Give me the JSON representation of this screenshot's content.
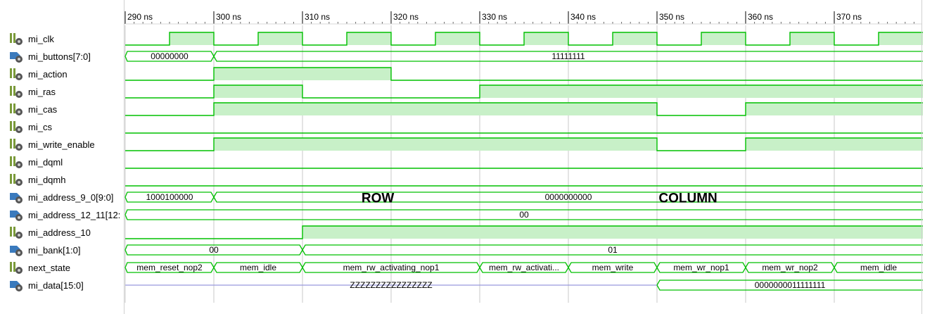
{
  "timeline": {
    "ticks": [
      {
        "t": 290,
        "label": "290 ns"
      },
      {
        "t": 300,
        "label": "300 ns"
      },
      {
        "t": 310,
        "label": "310 ns"
      },
      {
        "t": 320,
        "label": "320 ns"
      },
      {
        "t": 330,
        "label": "330 ns"
      },
      {
        "t": 340,
        "label": "340 ns"
      },
      {
        "t": 350,
        "label": "350 ns"
      },
      {
        "t": 360,
        "label": "360 ns"
      },
      {
        "t": 370,
        "label": "370 ns"
      }
    ],
    "t_start": 290,
    "t_end": 380,
    "cursor_times": [
      290,
      300,
      310,
      320,
      330,
      340,
      350,
      360,
      370
    ]
  },
  "colors": {
    "wave": "#00c000",
    "fill": "#c8f0c8",
    "highz": "#9999dd",
    "grid": "#c8c8c8"
  },
  "signals": [
    {
      "name": "mi_clk",
      "icon": "logic-signal-icon",
      "kind": "clock",
      "period": 10,
      "high_first_offset": 5
    },
    {
      "name": "mi_buttons[7:0]",
      "icon": "bus-signal-icon",
      "kind": "bus",
      "segments": [
        {
          "t0": 290,
          "t1": 300,
          "value": "00000000"
        },
        {
          "t0": 300,
          "t1": 380,
          "value": "11111111"
        }
      ]
    },
    {
      "name": "mi_action",
      "icon": "logic-signal-icon",
      "kind": "logic",
      "levels": [
        {
          "t0": 290,
          "t1": 300,
          "v": 0
        },
        {
          "t0": 300,
          "t1": 320,
          "v": 1
        },
        {
          "t0": 320,
          "t1": 380,
          "v": 0
        }
      ]
    },
    {
      "name": "mi_ras",
      "icon": "logic-signal-icon",
      "kind": "logic",
      "levels": [
        {
          "t0": 290,
          "t1": 300,
          "v": 0
        },
        {
          "t0": 300,
          "t1": 310,
          "v": 1
        },
        {
          "t0": 310,
          "t1": 330,
          "v": 0
        },
        {
          "t0": 330,
          "t1": 380,
          "v": 1
        }
      ]
    },
    {
      "name": "mi_cas",
      "icon": "logic-signal-icon",
      "kind": "logic",
      "levels": [
        {
          "t0": 290,
          "t1": 300,
          "v": 0
        },
        {
          "t0": 300,
          "t1": 350,
          "v": 1
        },
        {
          "t0": 350,
          "t1": 360,
          "v": 0
        },
        {
          "t0": 360,
          "t1": 380,
          "v": 1
        }
      ]
    },
    {
      "name": "mi_cs",
      "icon": "logic-signal-icon",
      "kind": "logic",
      "levels": [
        {
          "t0": 290,
          "t1": 380,
          "v": 0
        }
      ]
    },
    {
      "name": "mi_write_enable",
      "icon": "logic-signal-icon",
      "kind": "logic",
      "levels": [
        {
          "t0": 290,
          "t1": 300,
          "v": 0
        },
        {
          "t0": 300,
          "t1": 350,
          "v": 1
        },
        {
          "t0": 350,
          "t1": 360,
          "v": 0
        },
        {
          "t0": 360,
          "t1": 380,
          "v": 1
        }
      ]
    },
    {
      "name": "mi_dqml",
      "icon": "logic-signal-icon",
      "kind": "logic",
      "levels": [
        {
          "t0": 290,
          "t1": 380,
          "v": 0
        }
      ]
    },
    {
      "name": "mi_dqmh",
      "icon": "logic-signal-icon",
      "kind": "logic",
      "levels": [
        {
          "t0": 290,
          "t1": 380,
          "v": 0
        }
      ]
    },
    {
      "name": "mi_address_9_0[9:0]",
      "icon": "bus-signal-icon",
      "kind": "bus",
      "segments": [
        {
          "t0": 290,
          "t1": 300,
          "value": "1000100000"
        },
        {
          "t0": 300,
          "t1": 380,
          "value": "0000000000"
        }
      ]
    },
    {
      "name": "mi_address_12_11[12:",
      "icon": "bus-signal-icon",
      "kind": "bus",
      "segments": [
        {
          "t0": 290,
          "t1": 380,
          "value": "00"
        }
      ]
    },
    {
      "name": "mi_address_10",
      "icon": "logic-signal-icon",
      "kind": "logic",
      "levels": [
        {
          "t0": 290,
          "t1": 310,
          "v": 0
        },
        {
          "t0": 310,
          "t1": 380,
          "v": 1
        }
      ]
    },
    {
      "name": "mi_bank[1:0]",
      "icon": "bus-signal-icon",
      "kind": "bus",
      "segments": [
        {
          "t0": 290,
          "t1": 310,
          "value": "00"
        },
        {
          "t0": 310,
          "t1": 380,
          "value": "01"
        }
      ]
    },
    {
      "name": "next_state",
      "icon": "logic-signal-icon",
      "kind": "bus",
      "segments": [
        {
          "t0": 290,
          "t1": 300,
          "value": "mem_reset_nop2"
        },
        {
          "t0": 300,
          "t1": 310,
          "value": "mem_idle"
        },
        {
          "t0": 310,
          "t1": 330,
          "value": "mem_rw_activating_nop1"
        },
        {
          "t0": 330,
          "t1": 340,
          "value": "mem_rw_activati..."
        },
        {
          "t0": 340,
          "t1": 350,
          "value": "mem_write"
        },
        {
          "t0": 350,
          "t1": 360,
          "value": "mem_wr_nop1"
        },
        {
          "t0": 360,
          "t1": 370,
          "value": "mem_wr_nop2"
        },
        {
          "t0": 370,
          "t1": 380,
          "value": "mem_idle"
        }
      ]
    },
    {
      "name": "mi_data[15:0]",
      "icon": "bus-signal-icon",
      "kind": "bus",
      "segments": [
        {
          "t0": 290,
          "t1": 350,
          "value": "ZZZZZZZZZZZZZZZZ",
          "highz": true
        },
        {
          "t0": 350,
          "t1": 380,
          "value": "0000000011111111"
        }
      ]
    }
  ],
  "annotations": [
    {
      "text": "ROW",
      "t": 318.5,
      "row": 9.5
    },
    {
      "text": "COLUMN",
      "t": 353.5,
      "row": 9.5
    }
  ]
}
